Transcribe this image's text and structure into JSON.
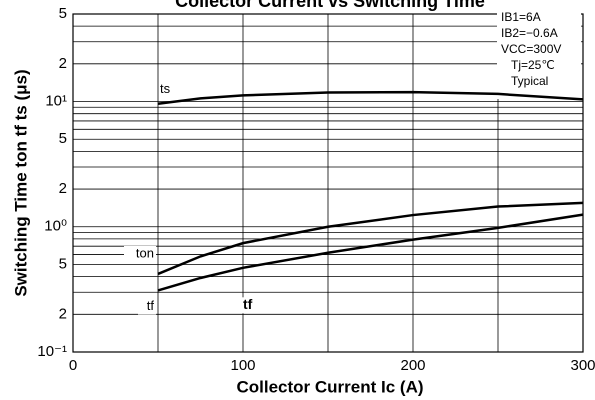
{
  "chart_data": {
    "type": "line",
    "title": "Collector Current vs Switching Time",
    "x_label": "Collector Current Ic (A)",
    "y_label": "Switching Time ton tf ts (μs)",
    "x": [
      50,
      75,
      100,
      150,
      200,
      250,
      300
    ],
    "series": [
      {
        "name": "ts",
        "color": "#000000",
        "values": [
          9.6,
          10.6,
          11.2,
          11.8,
          11.9,
          11.5,
          10.4
        ]
      },
      {
        "name": "ton",
        "color": "#000000",
        "values": [
          0.42,
          0.58,
          0.74,
          1.0,
          1.24,
          1.45,
          1.55
        ]
      },
      {
        "name": "tf",
        "color": "#000000",
        "values": [
          0.31,
          0.39,
          0.47,
          0.62,
          0.79,
          0.98,
          1.25
        ]
      }
    ],
    "annotations": [
      {
        "text": "tf",
        "x": 100,
        "y": 0.2
      }
    ],
    "conditions": [
      "IB1=6A",
      "IB2=−0.6A",
      "VCC=300V",
      "Tj=25℃",
      "Typical"
    ],
    "xlim": [
      0,
      300
    ],
    "xticks": [
      0,
      100,
      200,
      300
    ],
    "minor_xgrid": [
      50,
      150,
      250
    ],
    "ylim": [
      0.1,
      50
    ],
    "log_y": true,
    "yticks": [
      {
        "value": 0.1,
        "label": "10⁻¹"
      },
      {
        "value": 0.2,
        "label": "2"
      },
      {
        "value": 0.5,
        "label": "5"
      },
      {
        "value": 1,
        "label": "10⁰"
      },
      2,
      5,
      {
        "value": 10,
        "label": "10¹"
      },
      {
        "value": 20,
        "label": "2"
      },
      {
        "value": 50,
        "label": "5"
      }
    ],
    "minor_ygrid": [
      0.3,
      0.4,
      0.6,
      0.7,
      0.8,
      0.9,
      3,
      4,
      6,
      7,
      8,
      9,
      30,
      40
    ],
    "grid": true
  }
}
